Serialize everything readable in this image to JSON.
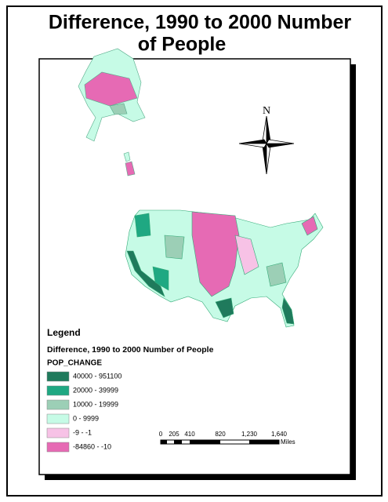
{
  "title": [
    "Difference, 1990 to 2000 Number",
    "of People"
  ],
  "north": "N",
  "legend": {
    "heading": "Legend",
    "title": "Difference, 1990 to 2000 Number of People",
    "field": "POP_CHANGE",
    "classes": [
      {
        "label": "40000 - 951100",
        "color": "#1f7a5c"
      },
      {
        "label": "20000 - 39999",
        "color": "#1fa882"
      },
      {
        "label": "10000 - 19999",
        "color": "#9ccfb6"
      },
      {
        "label": "0 - 9999",
        "color": "#c6fbe6"
      },
      {
        "label": "-9 - -1",
        "color": "#f7c2e6"
      },
      {
        "label": "-84860 - -10",
        "color": "#e66ab4"
      }
    ]
  },
  "scale": {
    "labels": [
      "0",
      "205",
      "410",
      "820",
      "1,230",
      "1,640"
    ],
    "unit": "Miles"
  }
}
